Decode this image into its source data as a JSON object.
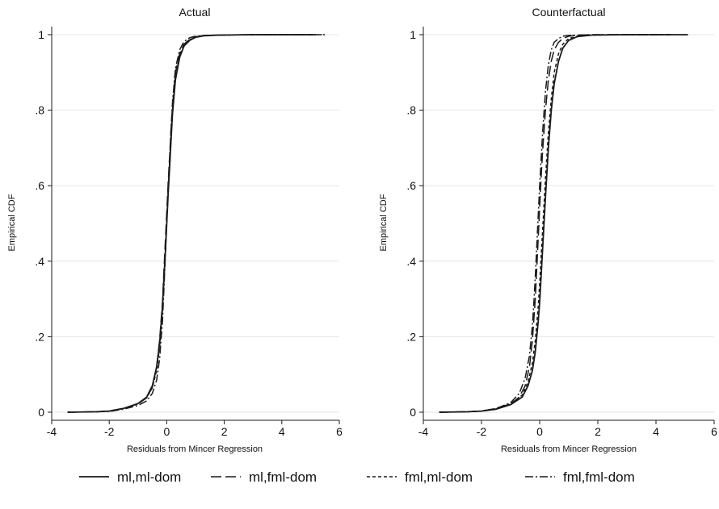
{
  "chart_data": [
    {
      "type": "line",
      "title": "Actual",
      "xlabel": "Residuals from Mincer Regression",
      "ylabel": "Empirical CDF",
      "xlim": [
        -4,
        6
      ],
      "ylim": [
        0,
        1
      ],
      "x_ticks": [
        -4,
        -2,
        0,
        2,
        4,
        6
      ],
      "x_tick_labels": [
        "-4",
        "-2",
        "0",
        "2",
        "4",
        "6"
      ],
      "y_ticks": [
        0,
        0.2,
        0.4,
        0.6,
        0.8,
        1
      ],
      "y_tick_labels": [
        "0",
        ".2",
        ".4",
        ".6",
        ".8",
        "1"
      ],
      "grid": "horizontal",
      "series": [
        {
          "name": "ml,ml-dom",
          "dash": "solid",
          "x": [
            -3.45,
            -2.5,
            -2.0,
            -1.5,
            -1.0,
            -0.7,
            -0.5,
            -0.35,
            -0.25,
            -0.15,
            -0.1,
            -0.05,
            0.0,
            0.05,
            0.1,
            0.15,
            0.2,
            0.3,
            0.45,
            0.6,
            0.8,
            1.0,
            1.3,
            1.8,
            3.0,
            5.1
          ],
          "y": [
            0.0,
            0.001,
            0.003,
            0.01,
            0.023,
            0.04,
            0.07,
            0.12,
            0.18,
            0.28,
            0.35,
            0.42,
            0.5,
            0.58,
            0.65,
            0.72,
            0.79,
            0.88,
            0.94,
            0.97,
            0.985,
            0.993,
            0.997,
            0.999,
            1.0,
            1.0
          ]
        },
        {
          "name": "ml,fml-dom",
          "dash": "longdash",
          "x": [
            -3.45,
            -2.5,
            -2.0,
            -1.5,
            -1.0,
            -0.7,
            -0.5,
            -0.35,
            -0.25,
            -0.15,
            -0.1,
            -0.05,
            0.0,
            0.05,
            0.1,
            0.15,
            0.2,
            0.3,
            0.45,
            0.6,
            0.8,
            1.0,
            1.3,
            1.8,
            3.0,
            5.5
          ],
          "y": [
            0.0,
            0.001,
            0.003,
            0.01,
            0.022,
            0.038,
            0.066,
            0.12,
            0.19,
            0.29,
            0.37,
            0.45,
            0.53,
            0.61,
            0.68,
            0.75,
            0.81,
            0.9,
            0.95,
            0.975,
            0.988,
            0.994,
            0.998,
            0.999,
            1.0,
            1.0
          ]
        },
        {
          "name": "fml,ml-dom",
          "dash": "shortdash",
          "x": [
            -3.45,
            -2.5,
            -2.0,
            -1.5,
            -1.0,
            -0.7,
            -0.5,
            -0.35,
            -0.25,
            -0.15,
            -0.1,
            -0.05,
            0.0,
            0.05,
            0.1,
            0.15,
            0.2,
            0.3,
            0.45,
            0.6,
            0.8,
            1.0,
            1.3,
            1.8,
            3.0,
            5.2
          ],
          "y": [
            0.0,
            0.001,
            0.003,
            0.01,
            0.022,
            0.038,
            0.065,
            0.11,
            0.17,
            0.27,
            0.34,
            0.42,
            0.51,
            0.59,
            0.66,
            0.73,
            0.8,
            0.89,
            0.945,
            0.972,
            0.987,
            0.994,
            0.998,
            0.999,
            1.0,
            1.0
          ]
        },
        {
          "name": "fml,fml-dom",
          "dash": "dashdot",
          "x": [
            -3.45,
            -2.5,
            -2.0,
            -1.5,
            -1.0,
            -0.7,
            -0.5,
            -0.35,
            -0.25,
            -0.15,
            -0.1,
            -0.05,
            0.0,
            0.05,
            0.1,
            0.15,
            0.2,
            0.3,
            0.45,
            0.6,
            0.8,
            1.0,
            1.3,
            1.8,
            3.0,
            5.4
          ],
          "y": [
            0.0,
            0.001,
            0.002,
            0.008,
            0.018,
            0.03,
            0.05,
            0.085,
            0.14,
            0.24,
            0.32,
            0.41,
            0.5,
            0.59,
            0.67,
            0.75,
            0.82,
            0.91,
            0.96,
            0.982,
            0.992,
            0.996,
            0.998,
            0.999,
            1.0,
            1.0
          ]
        }
      ]
    },
    {
      "type": "line",
      "title": "Counterfactual",
      "xlabel": "Residuals from Mincer Regression",
      "ylabel": "Empirical CDF",
      "xlim": [
        -4,
        6
      ],
      "ylim": [
        0,
        1
      ],
      "x_ticks": [
        -4,
        -2,
        0,
        2,
        4,
        6
      ],
      "x_tick_labels": [
        "-4",
        "-2",
        "0",
        "2",
        "4",
        "6"
      ],
      "y_ticks": [
        0,
        0.2,
        0.4,
        0.6,
        0.8,
        1
      ],
      "y_tick_labels": [
        "0",
        ".2",
        ".4",
        ".6",
        ".8",
        "1"
      ],
      "grid": "horizontal",
      "series": [
        {
          "name": "ml,ml-dom",
          "dash": "solid",
          "x": [
            -3.45,
            -2.5,
            -2.0,
            -1.5,
            -1.0,
            -0.6,
            -0.4,
            -0.25,
            -0.15,
            -0.05,
            0.0,
            0.05,
            0.1,
            0.15,
            0.2,
            0.3,
            0.4,
            0.5,
            0.65,
            0.8,
            1.0,
            1.3,
            1.8,
            3.0,
            5.1
          ],
          "y": [
            0.0,
            0.001,
            0.003,
            0.008,
            0.02,
            0.04,
            0.07,
            0.11,
            0.16,
            0.24,
            0.29,
            0.36,
            0.43,
            0.5,
            0.57,
            0.7,
            0.8,
            0.87,
            0.93,
            0.965,
            0.985,
            0.995,
            0.999,
            1.0,
            1.0
          ]
        },
        {
          "name": "ml,fml-dom",
          "dash": "longdash",
          "x": [
            -3.45,
            -2.5,
            -2.0,
            -1.5,
            -1.0,
            -0.7,
            -0.5,
            -0.35,
            -0.25,
            -0.15,
            -0.1,
            -0.05,
            0.0,
            0.05,
            0.1,
            0.2,
            0.3,
            0.4,
            0.5,
            0.65,
            0.8,
            1.0,
            1.3,
            1.8,
            3.0,
            4.5
          ],
          "y": [
            0.0,
            0.001,
            0.003,
            0.01,
            0.022,
            0.04,
            0.07,
            0.12,
            0.19,
            0.3,
            0.38,
            0.46,
            0.54,
            0.62,
            0.69,
            0.8,
            0.88,
            0.93,
            0.96,
            0.98,
            0.99,
            0.996,
            0.999,
            1.0,
            1.0,
            1.0
          ]
        },
        {
          "name": "fml,ml-dom",
          "dash": "shortdash",
          "x": [
            -3.45,
            -2.5,
            -2.0,
            -1.5,
            -1.0,
            -0.6,
            -0.4,
            -0.25,
            -0.15,
            -0.05,
            0.0,
            0.05,
            0.1,
            0.15,
            0.2,
            0.3,
            0.4,
            0.5,
            0.65,
            0.8,
            1.0,
            1.3,
            1.8,
            3.0,
            4.5
          ],
          "y": [
            0.0,
            0.001,
            0.003,
            0.009,
            0.022,
            0.045,
            0.08,
            0.13,
            0.19,
            0.28,
            0.34,
            0.41,
            0.48,
            0.55,
            0.62,
            0.74,
            0.83,
            0.9,
            0.95,
            0.975,
            0.99,
            0.996,
            0.999,
            1.0,
            1.0
          ]
        },
        {
          "name": "fml,fml-dom",
          "dash": "dashdot",
          "x": [
            -3.45,
            -2.5,
            -2.0,
            -1.5,
            -1.0,
            -0.7,
            -0.5,
            -0.35,
            -0.25,
            -0.2,
            -0.15,
            -0.1,
            -0.05,
            0.0,
            0.05,
            0.1,
            0.2,
            0.3,
            0.4,
            0.5,
            0.65,
            0.8,
            1.0,
            1.3,
            1.8,
            3.0,
            4.5
          ],
          "y": [
            0.0,
            0.001,
            0.003,
            0.01,
            0.025,
            0.05,
            0.09,
            0.15,
            0.23,
            0.29,
            0.36,
            0.44,
            0.52,
            0.6,
            0.67,
            0.74,
            0.85,
            0.92,
            0.96,
            0.98,
            0.99,
            0.996,
            0.998,
            0.999,
            1.0,
            1.0,
            1.0
          ]
        }
      ]
    }
  ],
  "legend": {
    "placement": "bottom",
    "entries": [
      {
        "label": "ml,ml-dom",
        "dash": "solid"
      },
      {
        "label": "ml,fml-dom",
        "dash": "longdash"
      },
      {
        "label": "fml,ml-dom",
        "dash": "shortdash"
      },
      {
        "label": "fml,fml-dom",
        "dash": "dashdot"
      }
    ]
  },
  "colors": {
    "line": "#1a1a1a",
    "grid": "#e6e6e6",
    "axis": "#1a1a1a",
    "background": "#ffffff"
  }
}
